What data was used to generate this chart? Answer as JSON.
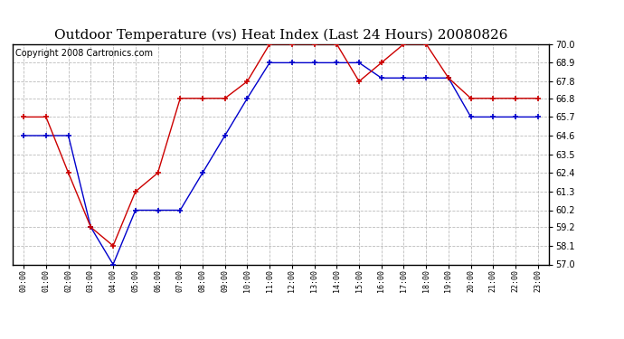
{
  "title": "Outdoor Temperature (vs) Heat Index (Last 24 Hours) 20080826",
  "copyright": "Copyright 2008 Cartronics.com",
  "x_labels": [
    "00:00",
    "01:00",
    "02:00",
    "03:00",
    "04:00",
    "05:00",
    "06:00",
    "07:00",
    "08:00",
    "09:00",
    "10:00",
    "11:00",
    "12:00",
    "13:00",
    "14:00",
    "15:00",
    "16:00",
    "17:00",
    "18:00",
    "19:00",
    "20:00",
    "21:00",
    "22:00",
    "23:00"
  ],
  "temp_blue": [
    64.6,
    64.6,
    64.6,
    59.2,
    57.0,
    60.2,
    60.2,
    60.2,
    62.4,
    64.6,
    66.8,
    68.9,
    68.9,
    68.9,
    68.9,
    68.9,
    68.0,
    68.0,
    68.0,
    68.0,
    65.7,
    65.7,
    65.7,
    65.7
  ],
  "heat_red": [
    65.7,
    65.7,
    62.4,
    59.2,
    58.1,
    61.3,
    62.4,
    66.8,
    66.8,
    66.8,
    67.8,
    70.0,
    70.0,
    70.0,
    70.0,
    67.8,
    68.9,
    70.0,
    70.0,
    68.0,
    66.8,
    66.8,
    66.8,
    66.8
  ],
  "ylim": [
    57.0,
    70.0
  ],
  "yticks": [
    57.0,
    58.1,
    59.2,
    60.2,
    61.3,
    62.4,
    63.5,
    64.6,
    65.7,
    66.8,
    67.8,
    68.9,
    70.0
  ],
  "blue_color": "#0000cc",
  "red_color": "#cc0000",
  "bg_color": "#ffffff",
  "grid_color": "#bbbbbb",
  "title_fontsize": 11,
  "copyright_fontsize": 7,
  "figwidth": 6.9,
  "figheight": 3.75,
  "dpi": 100
}
